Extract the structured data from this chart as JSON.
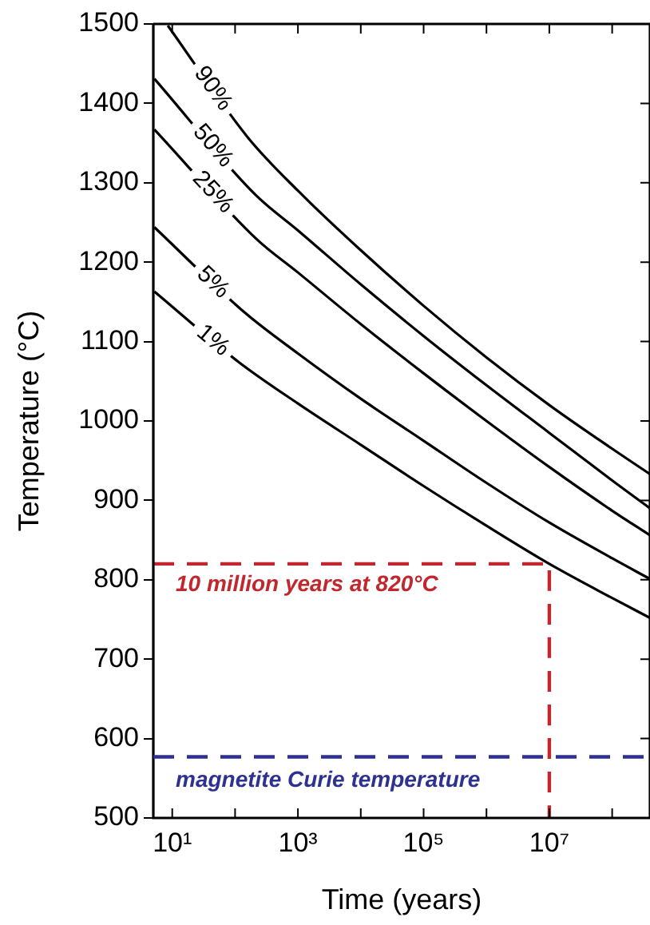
{
  "chart_data": {
    "type": "line",
    "xlabel": "Time (years)",
    "ylabel": "Temperature (°C)",
    "log": "x",
    "marker": "none",
    "line_style": "solid",
    "xlim": [
      5,
      400000000
    ],
    "ylim": [
      500,
      1500
    ],
    "xticks": [
      {
        "value": 10,
        "label": "10¹"
      },
      {
        "value": 100,
        "label": null
      },
      {
        "value": 1000,
        "label": "10³"
      },
      {
        "value": 10000,
        "label": null
      },
      {
        "value": 100000,
        "label": "10⁵"
      },
      {
        "value": 1000000,
        "label": null
      },
      {
        "value": 10000000,
        "label": "10⁷"
      },
      {
        "value": 100000000,
        "label": null
      }
    ],
    "yticks": [
      500,
      600,
      700,
      800,
      900,
      1000,
      1100,
      1200,
      1300,
      1400,
      1500
    ],
    "series": [
      {
        "name": "90%",
        "color": "#000000",
        "x": [
          8.5,
          160,
          1000,
          10000,
          100000,
          1000000,
          10000000,
          100000000,
          400000000
        ],
        "values": [
          1498,
          1357,
          1290,
          1215,
          1145,
          1080,
          1020,
          965,
          933
        ]
      },
      {
        "name": "50%",
        "color": "#000000",
        "x": [
          5.2,
          210,
          1000,
          10000,
          100000,
          1000000,
          10000000,
          100000000,
          400000000
        ],
        "values": [
          1431,
          1285,
          1240,
          1172,
          1107,
          1045,
          985,
          925,
          890
        ]
      },
      {
        "name": "25%",
        "color": "#000000",
        "x": [
          5.2,
          220,
          1000,
          10000,
          100000,
          1000000,
          10000000,
          100000000,
          400000000
        ],
        "values": [
          1367,
          1229,
          1187,
          1122,
          1060,
          1000,
          942,
          887,
          856
        ]
      },
      {
        "name": "5%",
        "color": "#000000",
        "x": [
          5.2,
          145,
          1000,
          10000,
          100000,
          1000000,
          10000000,
          100000000,
          400000000
        ],
        "values": [
          1244,
          1136,
          1085,
          1028,
          975,
          922,
          872,
          827,
          801
        ]
      },
      {
        "name": "1%",
        "color": "#000000",
        "x": [
          5.2,
          115,
          1000,
          10000,
          100000,
          1000000,
          10000000,
          100000000,
          400000000
        ],
        "values": [
          1163,
          1074,
          1022,
          970,
          918,
          868,
          820,
          777,
          752
        ]
      },
      {
        "type": "line",
        "color": "#c1272d",
        "line_style": "dashed",
        "x": [
          5,
          10000000,
          10000000
        ],
        "values": [
          820,
          820,
          500
        ]
      }
    ],
    "ref_lines": [
      {
        "axis": "y",
        "value": 577,
        "label": "magnetite Curie temperature",
        "color": "#2e3192",
        "line_style": "dashed"
      }
    ],
    "legend": "top left",
    "annotations": [
      "10 million years at 820°C"
    ]
  }
}
